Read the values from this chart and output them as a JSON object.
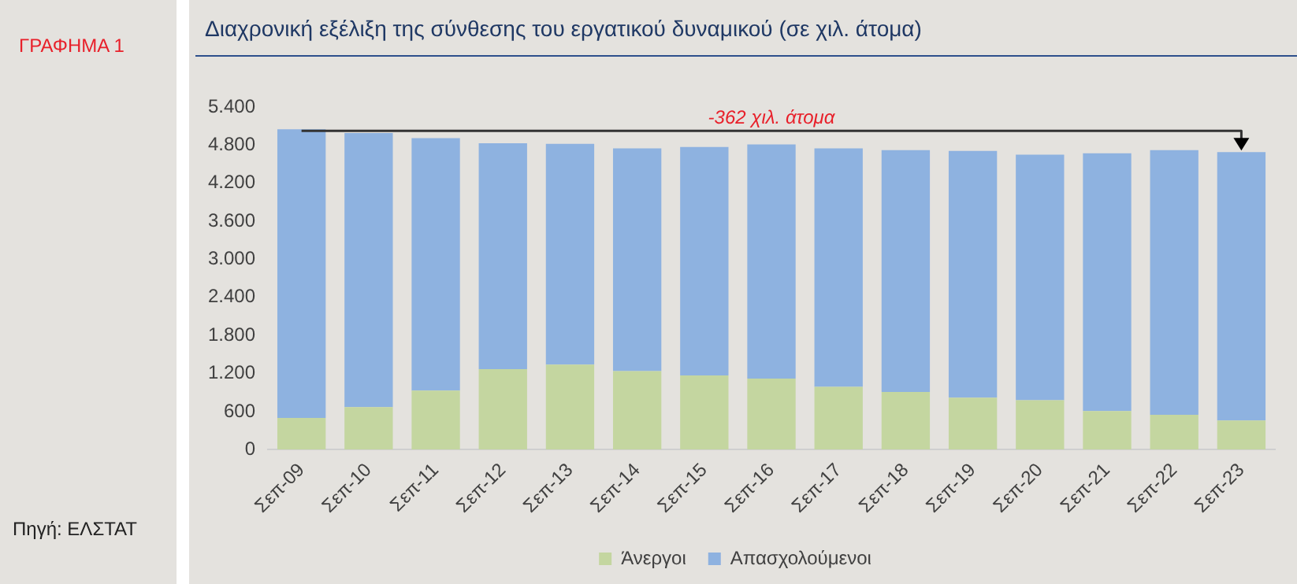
{
  "chart_data": {
    "type": "bar",
    "title": "Διαχρονική εξέλιξη της σύνθεσης του εργατικού δυναμικού (σε χιλ. άτομα)",
    "categories": [
      "Σεπ-09",
      "Σεπ-10",
      "Σεπ-11",
      "Σεπ-12",
      "Σεπ-13",
      "Σεπ-14",
      "Σεπ-15",
      "Σεπ-16",
      "Σεπ-17",
      "Σεπ-18",
      "Σεπ-19",
      "Σεπ-20",
      "Σεπ-21",
      "Σεπ-22",
      "Σεπ-23"
    ],
    "series": [
      {
        "name": "Άνεργοι",
        "color": "#c4d6a0",
        "values": [
          500,
          670,
          930,
          1270,
          1340,
          1240,
          1170,
          1120,
          990,
          910,
          820,
          780,
          610,
          550,
          460
        ]
      },
      {
        "name": "Απασχολούμενοι",
        "color": "#8eb2e0",
        "values": [
          4550,
          4320,
          3980,
          3560,
          3480,
          3510,
          3600,
          3690,
          3760,
          3810,
          3890,
          3870,
          4060,
          4170,
          4230
        ]
      }
    ],
    "stacked": true,
    "ylim": [
      0,
      5400
    ],
    "yticks": [
      0,
      600,
      {
        "value": 1200,
        "label": "1.200"
      },
      {
        "value": 1800,
        "label": "1.800"
      },
      {
        "value": 2400,
        "label": "2.400"
      },
      {
        "value": 3000,
        "label": "3.000"
      },
      {
        "value": 3600,
        "label": "3.600"
      },
      {
        "value": 4200,
        "label": "4.200"
      },
      {
        "value": 4800,
        "label": "4.800"
      },
      {
        "value": 5400,
        "label": "5.400"
      }
    ],
    "grid": false,
    "legend": "bottom",
    "annotations": [
      "ΓΡΑΦΗΜΑ 1",
      "-362 χιλ. άτομα",
      "Πηγή: ΕΛΣΤΑΤ"
    ]
  }
}
